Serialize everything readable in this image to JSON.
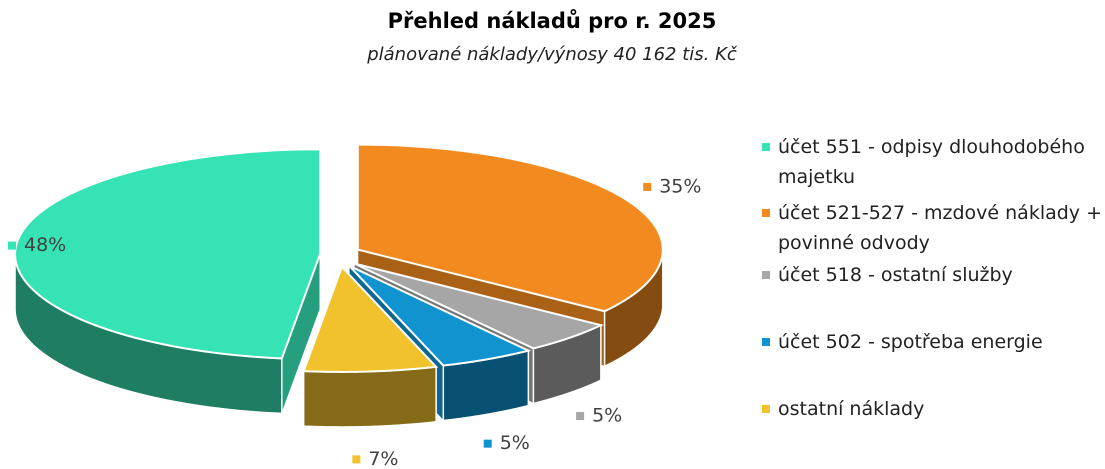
{
  "chart_data": {
    "type": "pie3d",
    "title": "Přehled nákladů pro r. 2025",
    "subtitle": "plánované náklady/výnosy 40 162 tis. Kč",
    "categories": [
      "účet 551 - odpisy dlouhodobého majetku",
      "účet 521-527 - mzdové náklady + povinné odvody",
      "účet 518 - ostatní služby",
      "účet 502 - spotřeba energie",
      "ostatní náklady"
    ],
    "values": [
      48,
      35,
      5,
      5,
      7
    ],
    "value_labels": [
      "48%",
      "35%",
      "5%",
      "5%",
      "7%"
    ],
    "colors": [
      "#36e3b4",
      "#f28a1f",
      "#a6a6a6",
      "#1193d0",
      "#f2c22c"
    ],
    "legend": "right"
  }
}
